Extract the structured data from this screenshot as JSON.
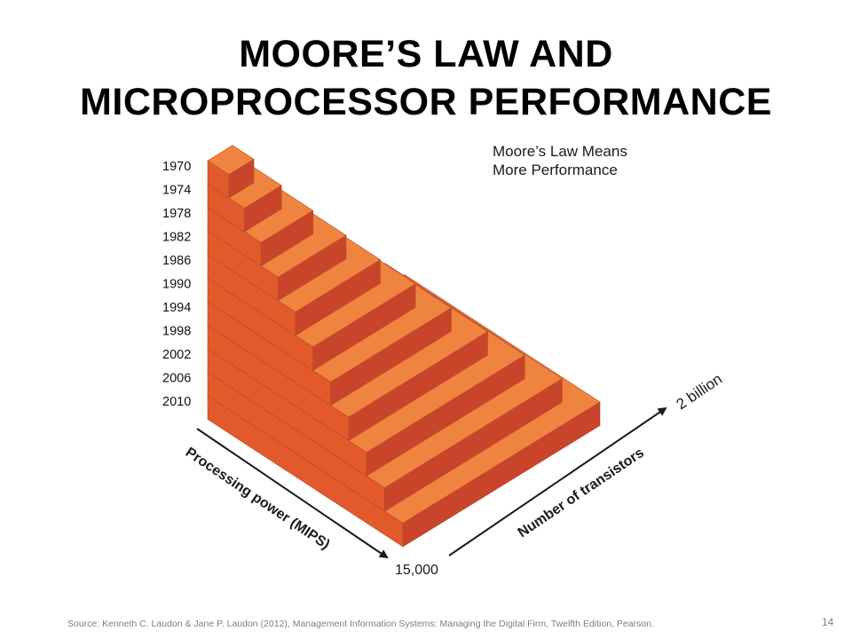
{
  "slide": {
    "title_line1": "MOORE’S LAW AND",
    "title_line2": "MICROPROCESSOR PERFORMANCE",
    "source": "Source: Kenneth C. Laudon & Jane P. Laudon (2012), Management Information  Systems: Managing the Digital Firm, Twelfth Edition, Pearson.",
    "page_number": "14"
  },
  "diagram": {
    "caption_line1": "Moore’s Law Means",
    "caption_line2": "More Performance",
    "years": [
      "1970",
      "1974",
      "1978",
      "1982",
      "1986",
      "1990",
      "1994",
      "1998",
      "2002",
      "2006",
      "2010"
    ],
    "axis_processing_label": "Processing power (MIPS)",
    "axis_transistors_label": "Number of transistors",
    "axis_origin_value": "15,000",
    "axis_transistors_max": "2 billion",
    "colors": {
      "top": "#ef8440",
      "front": "#e25a2b",
      "side": "#c8452b",
      "axis": "#1a1a1a"
    }
  }
}
